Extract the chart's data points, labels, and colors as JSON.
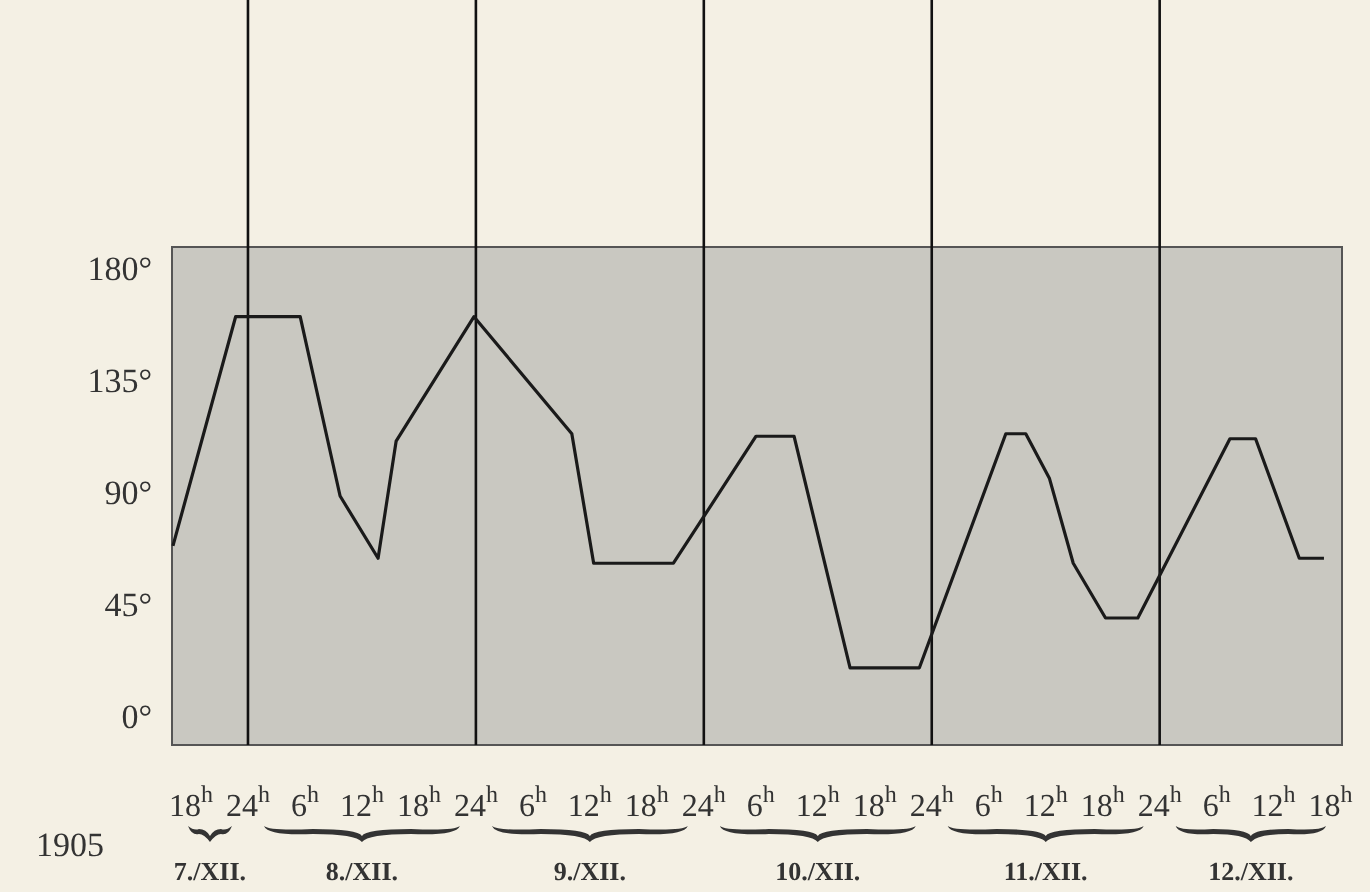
{
  "chart_data": {
    "type": "line",
    "color": "#1a1a1a",
    "x": [
      "1905-12-07T16:06",
      "1905-12-07T22:42",
      "1905-12-08T05:30",
      "1905-12-08T09:42",
      "1905-12-08T13:42",
      "1905-12-08T15:36",
      "1905-12-08T23:48",
      "1905-12-09T10:06",
      "1905-12-09T12:24",
      "1905-12-09T20:48",
      "1905-12-10T05:30",
      "1905-12-10T09:30",
      "1905-12-10T15:24",
      "1905-12-10T22:42",
      "1905-12-11T07:48",
      "1905-12-11T09:54",
      "1905-12-11T12:24",
      "1905-12-11T14:54",
      "1905-12-11T18:18",
      "1905-12-11T21:42",
      "1905-12-12T07:24",
      "1905-12-12T10:06",
      "1905-12-12T14:42",
      "1905-12-12T17:18"
    ],
    "values": [
      70,
      162,
      162,
      90,
      65,
      112,
      162,
      115,
      63,
      63,
      114,
      114,
      21,
      21,
      115,
      115,
      97,
      63,
      41,
      41,
      113,
      113,
      65,
      65
    ],
    "xlim": [
      "1905-12-07T16:00",
      "1905-12-12T19:12"
    ],
    "xticks": [
      {
        "value": "1905-12-07T18:00",
        "label": "18$^{h}$"
      },
      {
        "value": "1905-12-08T00:00",
        "label": "24$^{h}$"
      },
      {
        "value": "1905-12-08T06:00",
        "label": "6$^{h}$"
      },
      {
        "value": "1905-12-08T12:00",
        "label": "12$^{h}$"
      },
      {
        "value": "1905-12-08T18:00",
        "label": "18$^{h}$"
      },
      {
        "value": "1905-12-09T00:00",
        "label": "24$^{h}$"
      },
      {
        "value": "1905-12-09T06:00",
        "label": "6$^{h}$"
      },
      {
        "value": "1905-12-09T12:00",
        "label": "12$^{h}$"
      },
      {
        "value": "1905-12-09T18:00",
        "label": "18$^{h}$"
      },
      {
        "value": "1905-12-10T00:00",
        "label": "24$^{h}$"
      },
      {
        "value": "1905-12-10T06:00",
        "label": "6$^{h}$"
      },
      {
        "value": "1905-12-10T12:00",
        "label": "12$^{h}$"
      },
      {
        "value": "1905-12-10T18:00",
        "label": "18$^{h}$"
      },
      {
        "value": "1905-12-11T00:00",
        "label": "24$^{h}$"
      },
      {
        "value": "1905-12-11T06:00",
        "label": "6$^{h}$"
      },
      {
        "value": "1905-12-11T12:00",
        "label": "12$^{h}$"
      },
      {
        "value": "1905-12-11T18:00",
        "label": "18$^{h}$"
      },
      {
        "value": "1905-12-12T00:00",
        "label": "24$^{h}$"
      },
      {
        "value": "1905-12-12T06:00",
        "label": "6$^{h}$"
      },
      {
        "value": "1905-12-12T12:00",
        "label": "12$^{h}$"
      },
      {
        "value": "1905-12-12T18:00",
        "label": "18$^{h}$"
      }
    ],
    "ylim": [
      -10,
      190
    ],
    "yticks": [
      {
        "value": 0,
        "label": "0°"
      },
      {
        "value": 45,
        "label": "45°"
      },
      {
        "value": 90,
        "label": "90°"
      },
      {
        "value": 135,
        "label": "135°"
      },
      {
        "value": 180,
        "label": "180°"
      }
    ],
    "ref_lines": [
      {
        "axis": "x",
        "value": "1905-12-08T00:00"
      },
      {
        "axis": "x",
        "value": "1905-12-09T00:00"
      },
      {
        "axis": "x",
        "value": "1905-12-10T00:00"
      },
      {
        "axis": "x",
        "value": "1905-12-11T00:00"
      },
      {
        "axis": "x",
        "value": "1905-12-12T00:00"
      }
    ],
    "annotations": [
      "1905",
      "7./XII.",
      "8./XII.",
      "9./XII.",
      "10./XII.",
      "11./XII.",
      "12./XII."
    ],
    "grid": false,
    "marker": "none",
    "line_style": "solid"
  }
}
